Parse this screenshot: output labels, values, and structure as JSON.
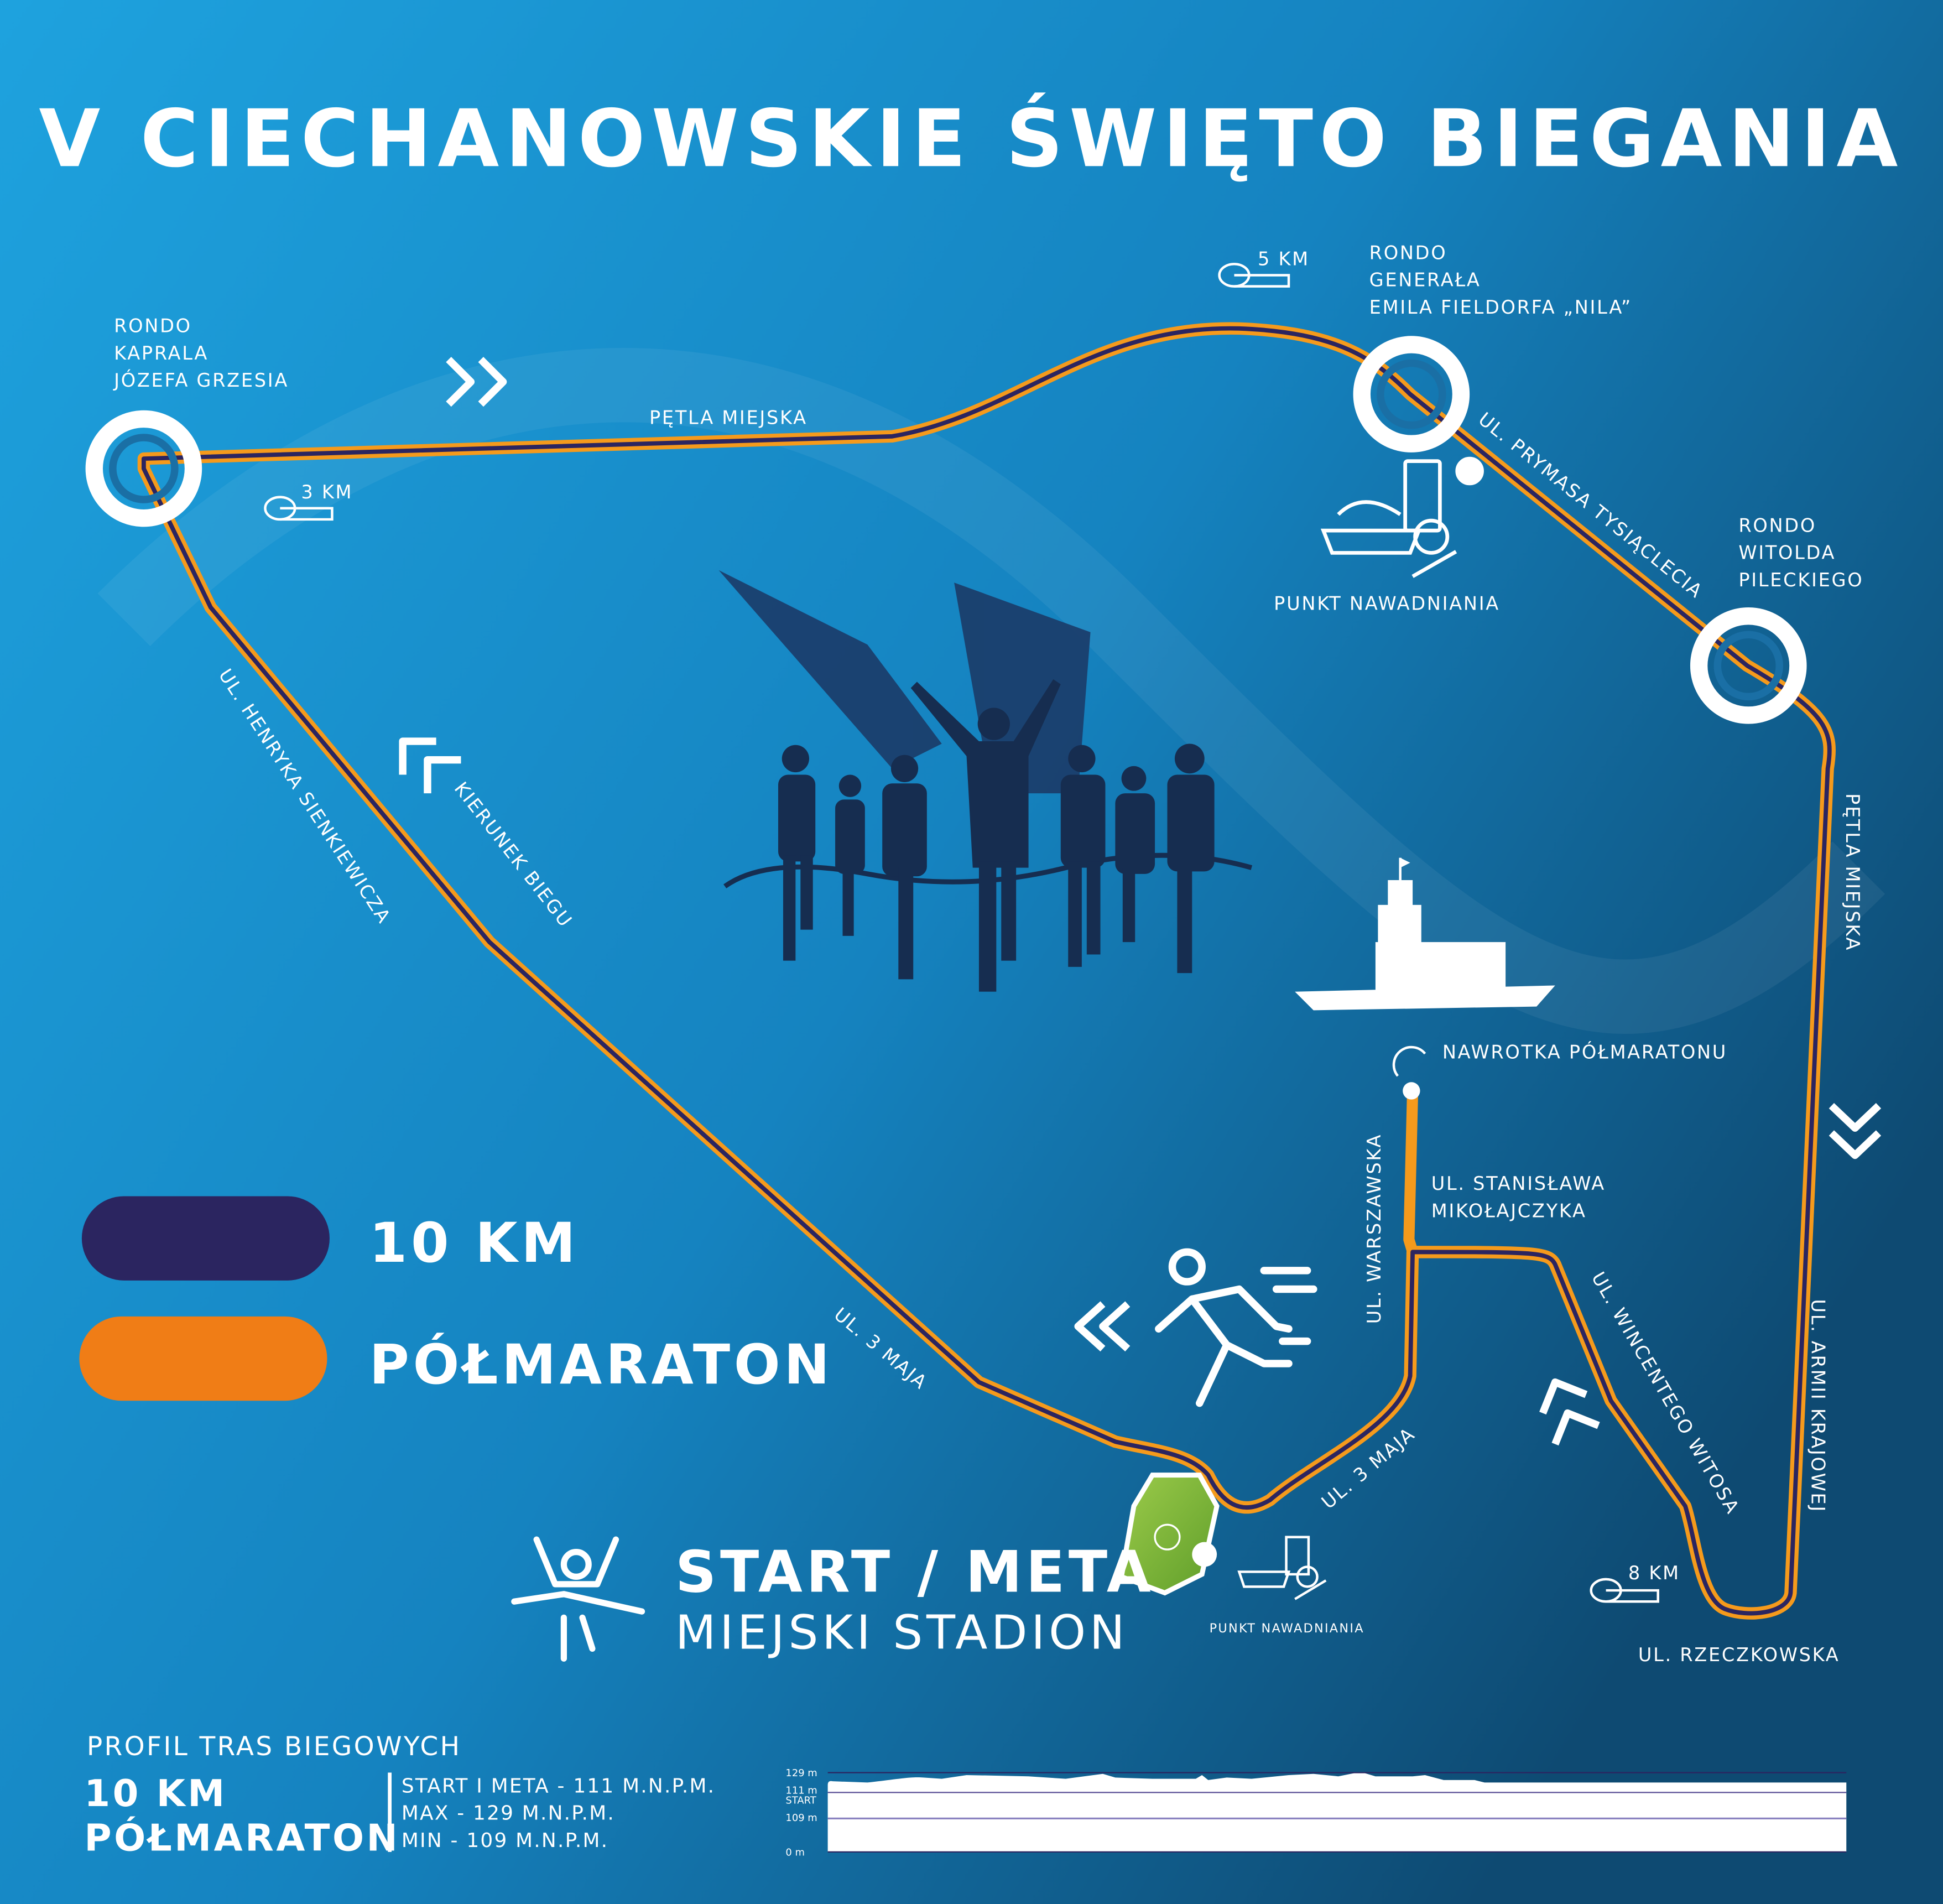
{
  "title": "V CIECHANOWSKIE ŚWIĘTO BIEGANIA",
  "colors": {
    "background_light": "#1a9ad6",
    "background_dark": "#0f4f78",
    "route_10km": "#2b2560",
    "route_half": "#f07d16",
    "stadium": "#7ab83a"
  },
  "roundabouts": [
    {
      "lines": [
        "RONDO",
        "KAPRALA",
        "JÓZEFA GRZESIA"
      ]
    },
    {
      "lines": [
        "RONDO",
        "GENERAŁA",
        "EMILA FIELDORFA „NILA”"
      ]
    },
    {
      "lines": [
        "RONDO",
        "WITOLDA",
        "PILECKIEGO"
      ]
    }
  ],
  "streets": {
    "petla_top": "PĘTLA MIEJSKA",
    "petla_right": "PĘTLA MIEJSKA",
    "prymasa": "UL. PRYMASA TYSIĄCLECIA",
    "sienkiewicza": "UL. HENRYKA SIENKIEWICZA",
    "kierunek": "KIERUNEK BIEGU",
    "maja1": "UL. 3 MAJA",
    "maja2": "UL. 3 MAJA",
    "warszawska": "UL. WARSZAWSKA",
    "mikolajczyka": [
      "UL. STANISŁAWA",
      "MIKOŁAJCZYKA"
    ],
    "witosa": "UL. WINCENTEGO WITOSA",
    "armii": "UL. ARMII KRAJOWEJ",
    "rzeczkowska": "UL. RZECZKOWSKA"
  },
  "km_markers": [
    "3 KM",
    "5 KM",
    "8 KM"
  ],
  "nawrotka": "NAWROTKA PÓŁMARATONU",
  "water_points": [
    "PUNKT NAWADNIANIA",
    "PUNKT NAWADNIANIA"
  ],
  "start": {
    "title": "START / META",
    "subtitle": "MIEJSKI STADION"
  },
  "legend": [
    {
      "label": "10 KM",
      "color": "#2b2560"
    },
    {
      "label": "PÓŁMARATON",
      "color": "#f07d16"
    }
  ],
  "profile": {
    "heading": "PROFIL TRAS BIEGOWYCH",
    "races": [
      "10 KM",
      "PÓŁMARATON"
    ],
    "stats": [
      "START I META - 111 M.N.P.M.",
      "MAX - 129 M.N.P.M.",
      "MIN - 109 M.N.P.M."
    ],
    "axis_labels": [
      "129 m",
      "111 m",
      "START",
      "109 m",
      "0 m"
    ]
  },
  "icons": [
    "roundabout-icon",
    "tape-measure-icon",
    "food-drink-icon",
    "chevron-direction-icon",
    "runner-icon",
    "finish-line-icon",
    "stadium-icon",
    "castle-icon",
    "u-turn-icon",
    "runners-silhouette"
  ]
}
